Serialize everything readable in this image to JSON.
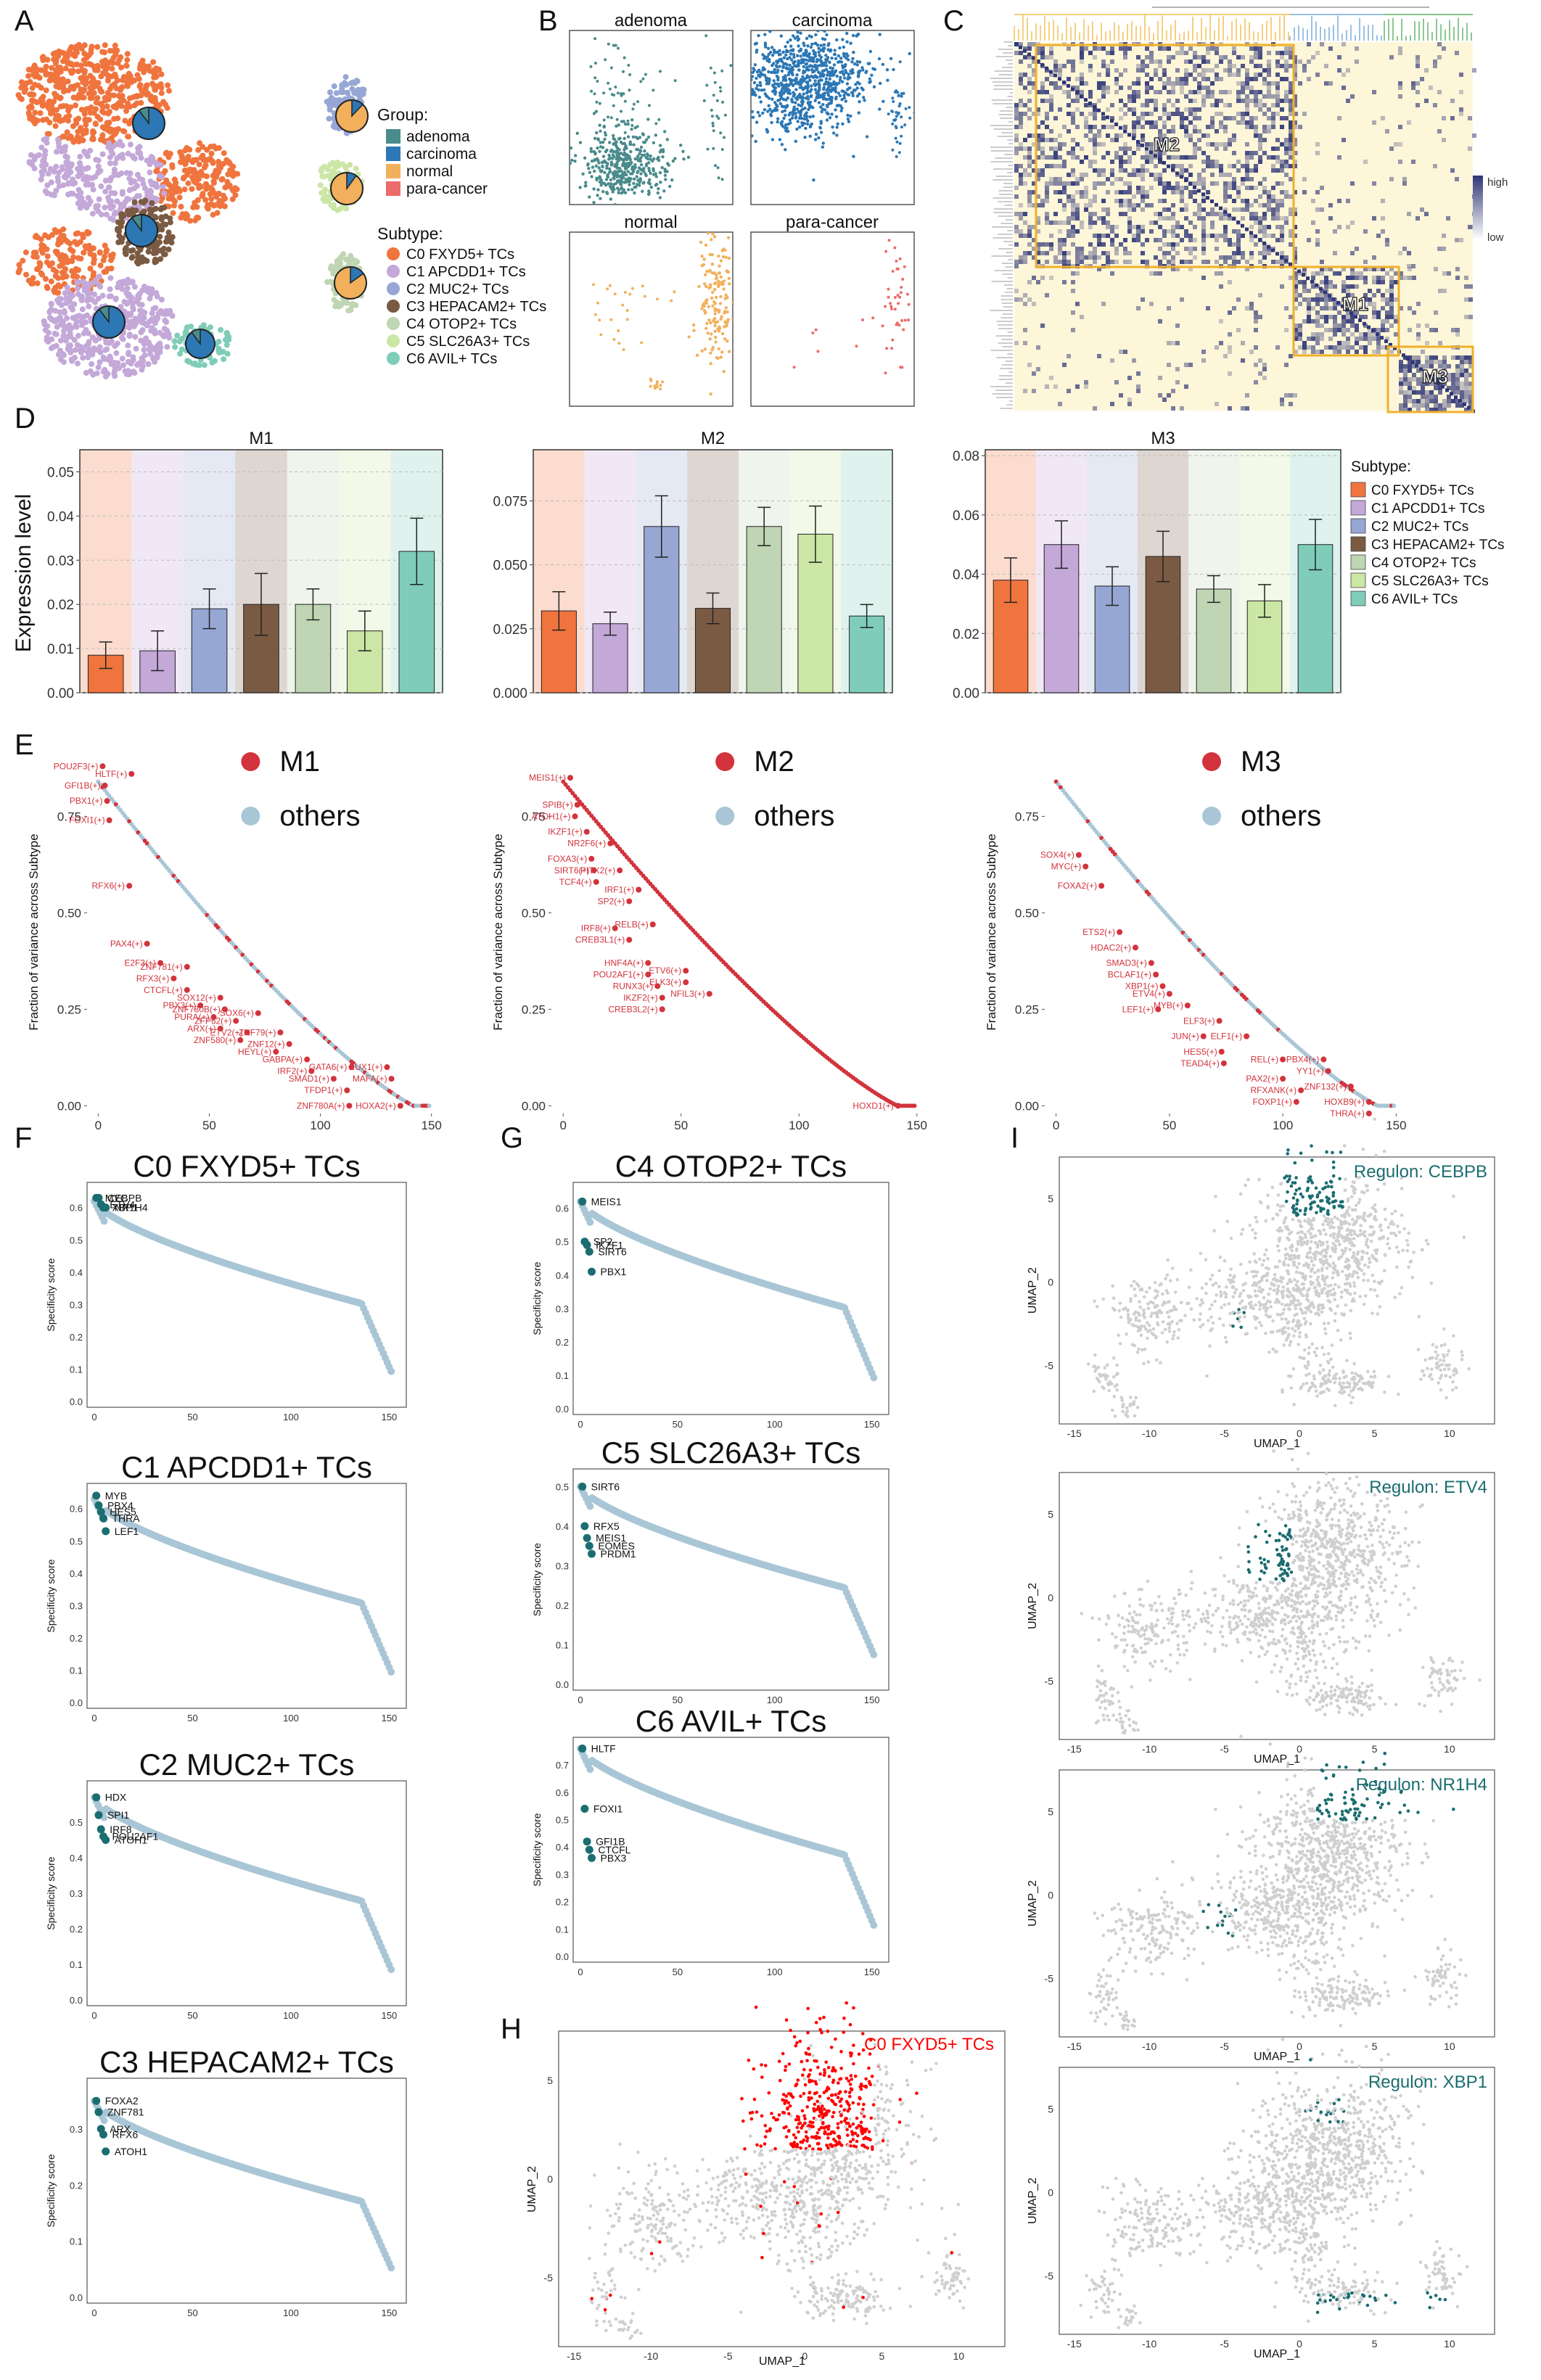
{
  "panel_letters": [
    "A",
    "B",
    "C",
    "D",
    "E",
    "F",
    "G",
    "I",
    "H"
  ],
  "colors": {
    "C0": "#f0743e",
    "C1": "#c3a8d8",
    "C2": "#96a7d4",
    "C3": "#7a5a42",
    "C4": "#bfd5b3",
    "C5": "#cbe6a5",
    "C6": "#7fcdb9",
    "adenoma": "#4a8b8c",
    "carcinoma": "#2c77b4",
    "normal": "#f2b05d",
    "para_cancer": "#ec6b6b",
    "highlight": "#d2333c",
    "others": "#a9c6d6",
    "teal": "#1b6d70",
    "red": "#ff0000",
    "amber": "#f0b02b",
    "navy": "#2f3677",
    "heat_bg": "#fdf6d8",
    "grey": "#cfcfcf"
  },
  "panelA": {
    "group_title": "Group:",
    "groups": [
      {
        "key": "adenoma",
        "label": "adenoma"
      },
      {
        "key": "carcinoma",
        "label": "carcinoma"
      },
      {
        "key": "normal",
        "label": "normal"
      },
      {
        "key": "para_cancer",
        "label": "para-cancer"
      }
    ],
    "subtype_title": "Subtype:",
    "subtypes": [
      {
        "key": "C0",
        "label": "C0 FXYD5+ TCs"
      },
      {
        "key": "C1",
        "label": "C1 APCDD1+ TCs"
      },
      {
        "key": "C2",
        "label": "C2 MUC2+ TCs"
      },
      {
        "key": "C3",
        "label": "C3 HEPACAM2+ TCs"
      },
      {
        "key": "C4",
        "label": "C4 OTOP2+ TCs"
      },
      {
        "key": "C5",
        "label": "C5 SLC26A3+ TCs"
      },
      {
        "key": "C6",
        "label": "C6 AVIL+ TCs"
      }
    ]
  },
  "panelB": {
    "facets": [
      {
        "title": "adenoma",
        "key": "adenoma"
      },
      {
        "title": "carcinoma",
        "key": "carcinoma"
      },
      {
        "title": "normal",
        "key": "normal"
      },
      {
        "title": "para-cancer",
        "key": "para_cancer"
      }
    ]
  },
  "panelC": {
    "modules": [
      "M2",
      "M1",
      "M3"
    ],
    "legend_high": "high",
    "legend_low": "low"
  },
  "panelD": {
    "ylabel": "Expression level",
    "legend_title": "Subtype:",
    "chart_data": [
      {
        "type": "bar",
        "title": "M1",
        "categories": [
          "C0",
          "C1",
          "C2",
          "C3",
          "C4",
          "C5",
          "C6"
        ],
        "values": [
          0.0085,
          0.0095,
          0.019,
          0.02,
          0.02,
          0.014,
          0.032
        ],
        "errors": [
          0.003,
          0.0045,
          0.0045,
          0.007,
          0.0035,
          0.0045,
          0.0075
        ],
        "ylim": [
          0,
          0.055
        ],
        "ticks": [
          "0.00",
          "0.01",
          "0.02",
          "0.03",
          "0.04",
          "0.05"
        ],
        "tickvals": [
          0,
          0.01,
          0.02,
          0.03,
          0.04,
          0.05
        ]
      },
      {
        "type": "bar",
        "title": "M2",
        "categories": [
          "C0",
          "C1",
          "C2",
          "C3",
          "C4",
          "C5",
          "C6"
        ],
        "values": [
          0.032,
          0.027,
          0.065,
          0.033,
          0.065,
          0.062,
          0.03
        ],
        "errors": [
          0.0075,
          0.0045,
          0.012,
          0.006,
          0.0075,
          0.011,
          0.0045
        ],
        "ylim": [
          0,
          0.095
        ],
        "ticks": [
          "0.000",
          "0.025",
          "0.050",
          "0.075"
        ],
        "tickvals": [
          0,
          0.025,
          0.05,
          0.075
        ]
      },
      {
        "type": "bar",
        "title": "M3",
        "categories": [
          "C0",
          "C1",
          "C2",
          "C3",
          "C4",
          "C5",
          "C6"
        ],
        "values": [
          0.038,
          0.05,
          0.036,
          0.046,
          0.035,
          0.031,
          0.05
        ],
        "errors": [
          0.0075,
          0.008,
          0.0065,
          0.0085,
          0.0045,
          0.0055,
          0.0085
        ],
        "ylim": [
          0,
          0.082
        ],
        "ticks": [
          "0.00",
          "0.02",
          "0.04",
          "0.06",
          "0.08"
        ],
        "tickvals": [
          0,
          0.02,
          0.04,
          0.06,
          0.08
        ]
      }
    ]
  },
  "panelE": {
    "ylabel": "Fraction of variance across Subtype",
    "others_label": "others",
    "chart_data": [
      {
        "type": "scatter",
        "module": "M1",
        "xlim": [
          -5,
          155
        ],
        "ylim": [
          -0.02,
          0.92
        ],
        "labels": [
          {
            "t": "POU2F3(+)",
            "x": 2,
            "y": 0.88
          },
          {
            "t": "HLTF(+)",
            "x": 15,
            "y": 0.86
          },
          {
            "t": "GFI1B(+)",
            "x": 3,
            "y": 0.83
          },
          {
            "t": "PBX1(+)",
            "x": 4,
            "y": 0.79
          },
          {
            "t": "FOXI1(+)",
            "x": 5,
            "y": 0.74
          },
          {
            "t": "RFX6(+)",
            "x": 14,
            "y": 0.57
          },
          {
            "t": "PAX4(+)",
            "x": 22,
            "y": 0.42
          },
          {
            "t": "E2F3(+)",
            "x": 28,
            "y": 0.37
          },
          {
            "t": "ZNF781(+)",
            "x": 40,
            "y": 0.36
          },
          {
            "t": "RFX3(+)",
            "x": 34,
            "y": 0.33
          },
          {
            "t": "CTCFL(+)",
            "x": 40,
            "y": 0.3
          },
          {
            "t": "SOX12(+)",
            "x": 55,
            "y": 0.28
          },
          {
            "t": "PBX3(+)",
            "x": 46,
            "y": 0.26
          },
          {
            "t": "ZNF780B(+)",
            "x": 57,
            "y": 0.25
          },
          {
            "t": "SOX6(+)",
            "x": 72,
            "y": 0.24
          },
          {
            "t": "PURA(+)",
            "x": 52,
            "y": 0.23
          },
          {
            "t": "ZFP62(+)",
            "x": 62,
            "y": 0.22
          },
          {
            "t": "ARX(+)",
            "x": 55,
            "y": 0.2
          },
          {
            "t": "ETV2(+)",
            "x": 67,
            "y": 0.19
          },
          {
            "t": "ZNF79(+)",
            "x": 82,
            "y": 0.19
          },
          {
            "t": "ZNF580(+)",
            "x": 64,
            "y": 0.17
          },
          {
            "t": "ZNF12(+)",
            "x": 86,
            "y": 0.16
          },
          {
            "t": "HEYL(+)",
            "x": 80,
            "y": 0.14
          },
          {
            "t": "GABPA(+)",
            "x": 94,
            "y": 0.12
          },
          {
            "t": "IRF2(+)",
            "x": 96,
            "y": 0.09
          },
          {
            "t": "GATA6(+)",
            "x": 114,
            "y": 0.1
          },
          {
            "t": "EUX1(+)",
            "x": 130,
            "y": 0.1
          },
          {
            "t": "SMAD1(+)",
            "x": 106,
            "y": 0.07
          },
          {
            "t": "MAFA(+)",
            "x": 132,
            "y": 0.07
          },
          {
            "t": "TFDP1(+)",
            "x": 112,
            "y": 0.04
          },
          {
            "t": "ZNF780A(+)",
            "x": 113,
            "y": 0.0
          },
          {
            "t": "HOXA2(+)",
            "x": 136,
            "y": 0.0
          }
        ]
      },
      {
        "type": "scatter",
        "module": "M2",
        "xlim": [
          -5,
          155
        ],
        "ylim": [
          -0.02,
          0.92
        ],
        "labels": [
          {
            "t": "MEIS1(+)",
            "x": 3,
            "y": 0.85
          },
          {
            "t": "SPIB(+)",
            "x": 6,
            "y": 0.78
          },
          {
            "t": "ATOH1(+)",
            "x": 5,
            "y": 0.75
          },
          {
            "t": "IKZF1(+)",
            "x": 10,
            "y": 0.71
          },
          {
            "t": "NR2F6(+)",
            "x": 20,
            "y": 0.68
          },
          {
            "t": "FOXA3(+)",
            "x": 12,
            "y": 0.64
          },
          {
            "t": "SIRT6(+)",
            "x": 13,
            "y": 0.61
          },
          {
            "t": "PITX2(+)",
            "x": 24,
            "y": 0.61
          },
          {
            "t": "TCF4(+)",
            "x": 14,
            "y": 0.58
          },
          {
            "t": "IRF1(+)",
            "x": 32,
            "y": 0.56
          },
          {
            "t": "SP2(+)",
            "x": 28,
            "y": 0.53
          },
          {
            "t": "RELB(+)",
            "x": 38,
            "y": 0.47
          },
          {
            "t": "IRF8(+)",
            "x": 22,
            "y": 0.46
          },
          {
            "t": "CREB3L1(+)",
            "x": 28,
            "y": 0.43
          },
          {
            "t": "HNF4A(+)",
            "x": 36,
            "y": 0.37
          },
          {
            "t": "ETV6(+)",
            "x": 52,
            "y": 0.35
          },
          {
            "t": "POU2AF1(+)",
            "x": 36,
            "y": 0.34
          },
          {
            "t": "ELK3(+)",
            "x": 52,
            "y": 0.32
          },
          {
            "t": "RUNX3(+)",
            "x": 40,
            "y": 0.31
          },
          {
            "t": "NFIL3(+)",
            "x": 62,
            "y": 0.29
          },
          {
            "t": "IKZF2(+)",
            "x": 42,
            "y": 0.28
          },
          {
            "t": "CREB3L2(+)",
            "x": 42,
            "y": 0.25
          },
          {
            "t": "HOXD1(+)",
            "x": 142,
            "y": 0.0
          }
        ]
      },
      {
        "type": "scatter",
        "module": "M3",
        "xlim": [
          -5,
          155
        ],
        "ylim": [
          -0.02,
          0.92
        ],
        "labels": [
          {
            "t": "SOX4(+)",
            "x": 10,
            "y": 0.65
          },
          {
            "t": "MYC(+)",
            "x": 13,
            "y": 0.62
          },
          {
            "t": "FOXA2(+)",
            "x": 20,
            "y": 0.57
          },
          {
            "t": "ETS2(+)",
            "x": 28,
            "y": 0.45
          },
          {
            "t": "HDAC2(+)",
            "x": 35,
            "y": 0.41
          },
          {
            "t": "SMAD3(+)",
            "x": 42,
            "y": 0.37
          },
          {
            "t": "BCLAF1(+)",
            "x": 44,
            "y": 0.34
          },
          {
            "t": "XBP1(+)",
            "x": 47,
            "y": 0.31
          },
          {
            "t": "ETV4(+)",
            "x": 50,
            "y": 0.29
          },
          {
            "t": "MYB(+)",
            "x": 58,
            "y": 0.26
          },
          {
            "t": "LEF1(+)",
            "x": 45,
            "y": 0.25
          },
          {
            "t": "ELF3(+)",
            "x": 72,
            "y": 0.22
          },
          {
            "t": "JUN(+)",
            "x": 65,
            "y": 0.18
          },
          {
            "t": "ELF1(+)",
            "x": 84,
            "y": 0.18
          },
          {
            "t": "HES5(+)",
            "x": 73,
            "y": 0.14
          },
          {
            "t": "REL(+)",
            "x": 100,
            "y": 0.12
          },
          {
            "t": "PBX4(+)",
            "x": 118,
            "y": 0.12
          },
          {
            "t": "TEAD4(+)",
            "x": 74,
            "y": 0.11
          },
          {
            "t": "YY1(+)",
            "x": 120,
            "y": 0.09
          },
          {
            "t": "PAX2(+)",
            "x": 100,
            "y": 0.07
          },
          {
            "t": "ZNF132(+)",
            "x": 130,
            "y": 0.05
          },
          {
            "t": "RFXANK(+)",
            "x": 108,
            "y": 0.04
          },
          {
            "t": "FOXP1(+)",
            "x": 106,
            "y": 0.01
          },
          {
            "t": "HOXB9(+)",
            "x": 138,
            "y": 0.01
          },
          {
            "t": "THRA(+)",
            "x": 138,
            "y": -0.02
          }
        ]
      }
    ]
  },
  "panelFG": {
    "ylabel": "Specificity score",
    "chart_data": [
      {
        "type": "scatter",
        "title": "C0 FXYD5+ TCs",
        "tickvals": [
          0,
          0.1,
          0.2,
          0.3,
          0.4,
          0.5,
          0.6
        ],
        "ticks": [
          "0.0",
          "0.1",
          "0.2",
          "0.3",
          "0.4",
          "0.5",
          "0.6"
        ],
        "ylim": [
          0,
          0.66
        ],
        "start": 0.62,
        "labels": [
          {
            "t": "MYC",
            "y": 0.63
          },
          {
            "t": "CEBPB",
            "y": 0.63
          },
          {
            "t": "ETV4",
            "y": 0.61
          },
          {
            "t": "XBP1",
            "y": 0.6
          },
          {
            "t": "NR1H4",
            "y": 0.6
          }
        ]
      },
      {
        "type": "scatter",
        "title": "C1 APCDD1+ TCs",
        "tickvals": [
          0,
          0.1,
          0.2,
          0.3,
          0.4,
          0.5,
          0.6
        ],
        "ticks": [
          "0.0",
          "0.1",
          "0.2",
          "0.3",
          "0.4",
          "0.5",
          "0.6"
        ],
        "ylim": [
          0,
          0.66
        ],
        "start": 0.63,
        "labels": [
          {
            "t": "MYB",
            "y": 0.64
          },
          {
            "t": "PBX4",
            "y": 0.61
          },
          {
            "t": "HES5",
            "y": 0.59
          },
          {
            "t": "THRA",
            "y": 0.57
          },
          {
            "t": "LEF1",
            "y": 0.53
          }
        ]
      },
      {
        "type": "scatter",
        "title": "C2 MUC2+ TCs",
        "tickvals": [
          0,
          0.1,
          0.2,
          0.3,
          0.4,
          0.5
        ],
        "ticks": [
          "0.0",
          "0.1",
          "0.2",
          "0.3",
          "0.4",
          "0.5"
        ],
        "ylim": [
          0,
          0.6
        ],
        "start": 0.57,
        "labels": [
          {
            "t": "HDX",
            "y": 0.57
          },
          {
            "t": "SPI1",
            "y": 0.52
          },
          {
            "t": "IRF8",
            "y": 0.48
          },
          {
            "t": "POU2AF1",
            "y": 0.46
          },
          {
            "t": "ATOH1",
            "y": 0.45
          }
        ]
      },
      {
        "type": "scatter",
        "title": "C3 HEPACAM2+ TCs",
        "tickvals": [
          0,
          0.1,
          0.2,
          0.3
        ],
        "ticks": [
          "0.0",
          "0.1",
          "0.2",
          "0.3"
        ],
        "ylim": [
          0,
          0.38
        ],
        "start": 0.35,
        "labels": [
          {
            "t": "FOXA2",
            "y": 0.35
          },
          {
            "t": "ZNF781",
            "y": 0.33
          },
          {
            "t": "ARX",
            "y": 0.3
          },
          {
            "t": "RFX6",
            "y": 0.29
          },
          {
            "t": "ATOH1",
            "y": 0.26
          }
        ]
      },
      {
        "type": "scatter",
        "title": "C4 OTOP2+ TCs",
        "tickvals": [
          0,
          0.1,
          0.2,
          0.3,
          0.4,
          0.5,
          0.6
        ],
        "ticks": [
          "0.0",
          "0.1",
          "0.2",
          "0.3",
          "0.4",
          "0.5",
          "0.6"
        ],
        "ylim": [
          0,
          0.66
        ],
        "start": 0.62,
        "labels": [
          {
            "t": "MEIS1",
            "y": 0.62
          },
          {
            "t": "SP2",
            "y": 0.5
          },
          {
            "t": "IKZF1",
            "y": 0.49
          },
          {
            "t": "SIRT6",
            "y": 0.47
          },
          {
            "t": "PBX1",
            "y": 0.41
          }
        ]
      },
      {
        "type": "scatter",
        "title": "C5 SLC26A3+ TCs",
        "tickvals": [
          0,
          0.1,
          0.2,
          0.3,
          0.4,
          0.5
        ],
        "ticks": [
          "0.0",
          "0.1",
          "0.2",
          "0.3",
          "0.4",
          "0.5"
        ],
        "ylim": [
          0,
          0.53
        ],
        "start": 0.5,
        "labels": [
          {
            "t": "SIRT6",
            "y": 0.5
          },
          {
            "t": "RFX5",
            "y": 0.4
          },
          {
            "t": "MEIS1",
            "y": 0.37
          },
          {
            "t": "EOMES",
            "y": 0.35
          },
          {
            "t": "PRDM1",
            "y": 0.33
          }
        ]
      },
      {
        "type": "scatter",
        "title": "C6 AVIL+ TCs",
        "tickvals": [
          0,
          0.1,
          0.2,
          0.3,
          0.4,
          0.5,
          0.6,
          0.7
        ],
        "ticks": [
          "0.0",
          "0.1",
          "0.2",
          "0.3",
          "0.4",
          "0.5",
          "0.6",
          "0.7"
        ],
        "ylim": [
          0,
          0.78
        ],
        "start": 0.76,
        "labels": [
          {
            "t": "HLTF",
            "y": 0.76
          },
          {
            "t": "FOXI1",
            "y": 0.54
          },
          {
            "t": "GFI1B",
            "y": 0.42
          },
          {
            "t": "CTCFL",
            "y": 0.39
          },
          {
            "t": "PBX3",
            "y": 0.36
          }
        ]
      }
    ],
    "xticks": [
      "0",
      "50",
      "100",
      "150"
    ]
  },
  "panelH": {
    "title": "C0 FXYD5+ TCs",
    "xlabel": "UMAP_1",
    "ylabel": "UMAP_2",
    "xticks": [
      "-15",
      "-10",
      "-5",
      "0",
      "5",
      "10"
    ],
    "yticks": [
      "5",
      "0",
      "-5"
    ]
  },
  "panelI": {
    "xlabel": "UMAP_1",
    "ylabel": "UMAP_2",
    "xticks": [
      "-15",
      "-10",
      "-5",
      "0",
      "5",
      "10"
    ],
    "yticks": [
      "5",
      "0",
      "-5"
    ],
    "regulons": [
      "Regulon: CEBPB",
      "Regulon: ETV4",
      "Regulon: NR1H4",
      "Regulon: XBP1"
    ]
  }
}
